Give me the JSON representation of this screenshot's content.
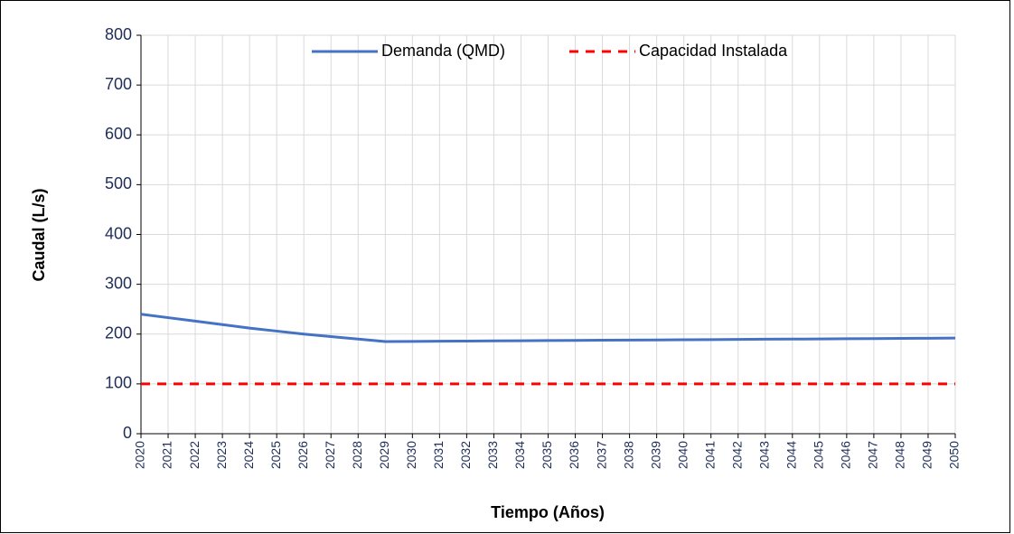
{
  "chart_data": {
    "type": "line",
    "x": [
      2020,
      2021,
      2022,
      2023,
      2024,
      2025,
      2026,
      2027,
      2028,
      2029,
      2030,
      2031,
      2032,
      2033,
      2034,
      2035,
      2036,
      2037,
      2038,
      2039,
      2040,
      2041,
      2042,
      2043,
      2044,
      2045,
      2046,
      2047,
      2048,
      2049,
      2050
    ],
    "series": [
      {
        "name": "Demanda (QMD)",
        "color": "#4472c4",
        "dash": false,
        "values": [
          240,
          233,
          226,
          219,
          212,
          206,
          200,
          195,
          190,
          185,
          185.3,
          185.7,
          186,
          186.3,
          186.7,
          187,
          187.3,
          187.7,
          188,
          188.3,
          188.7,
          189,
          189.3,
          189.7,
          190,
          190.3,
          190.7,
          191,
          191.3,
          191.7,
          192
        ]
      },
      {
        "name": "Capacidad Instalada",
        "color": "#ff0000",
        "dash": true,
        "values": [
          100,
          100,
          100,
          100,
          100,
          100,
          100,
          100,
          100,
          100,
          100,
          100,
          100,
          100,
          100,
          100,
          100,
          100,
          100,
          100,
          100,
          100,
          100,
          100,
          100,
          100,
          100,
          100,
          100,
          100,
          100
        ]
      }
    ],
    "xlabel": "Tiempo (Años)",
    "ylabel": "Caudal (L/s)",
    "xlim": [
      2020,
      2050
    ],
    "xticks": [
      2020,
      2021,
      2022,
      2023,
      2024,
      2025,
      2026,
      2027,
      2028,
      2029,
      2030,
      2031,
      2032,
      2033,
      2034,
      2035,
      2036,
      2037,
      2038,
      2039,
      2040,
      2041,
      2042,
      2043,
      2044,
      2045,
      2046,
      2047,
      2048,
      2049,
      2050
    ],
    "ylim": [
      0,
      800
    ],
    "yticks": [
      0,
      100,
      200,
      300,
      400,
      500,
      600,
      700,
      800
    ],
    "grid": true,
    "legend": "top"
  }
}
